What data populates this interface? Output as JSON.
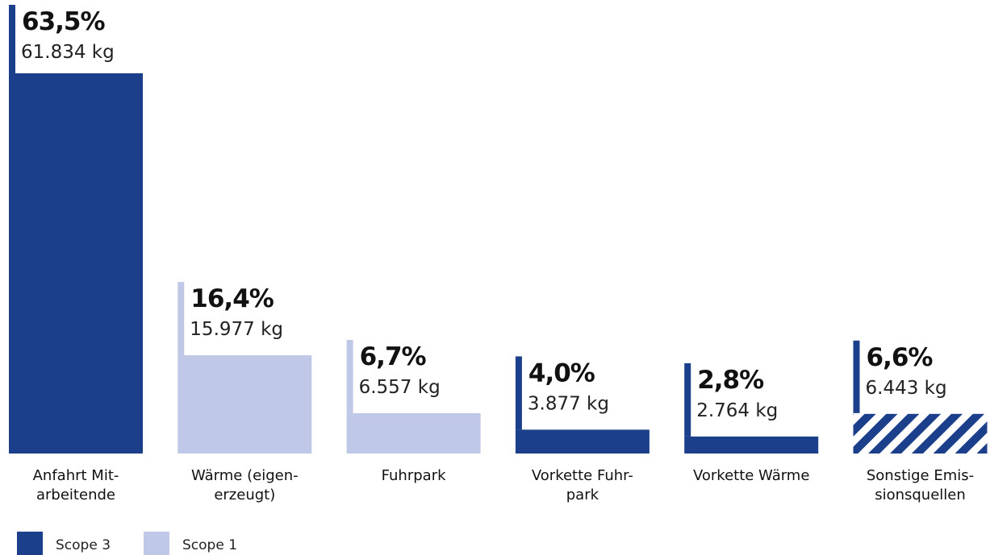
{
  "chart_data": {
    "type": "bar",
    "categories": [
      [
        "Anfahrt Mit-",
        "arbeitende"
      ],
      [
        "Wärme (eigen-",
        "erzeugt)"
      ],
      [
        "Fuhrpark"
      ],
      [
        "Vorkette Fuhr-",
        "park"
      ],
      [
        "Vorkette Wärme"
      ],
      [
        "Sonstige Emis-",
        "sionsquellen"
      ]
    ],
    "series": [
      {
        "values_kg": [
          61834,
          15977,
          6557,
          3877,
          2764,
          6443
        ],
        "value_labels": [
          "61.834 kg",
          "15.977 kg",
          "6.557 kg",
          "3.877 kg",
          "2.764 kg",
          "6.443 kg"
        ],
        "percent_labels": [
          "63,5%",
          "16,4%",
          "6,7%",
          "4,0%",
          "2,8%",
          "6,6%"
        ],
        "scope": [
          "Scope 3",
          "Scope 1",
          "Scope 1",
          "Scope 3",
          "Scope 3",
          "other"
        ]
      }
    ],
    "legend": [
      {
        "name": "Scope 3",
        "color": "#1b3f8b"
      },
      {
        "name": "Scope 1",
        "color": "#bfc8e6"
      }
    ],
    "legend_position": "bottom-left",
    "grid": false,
    "colors": {
      "scope3": "#1b3f8b",
      "scope1": "#bfc8e6",
      "hatch": "#1b3f8b"
    }
  }
}
